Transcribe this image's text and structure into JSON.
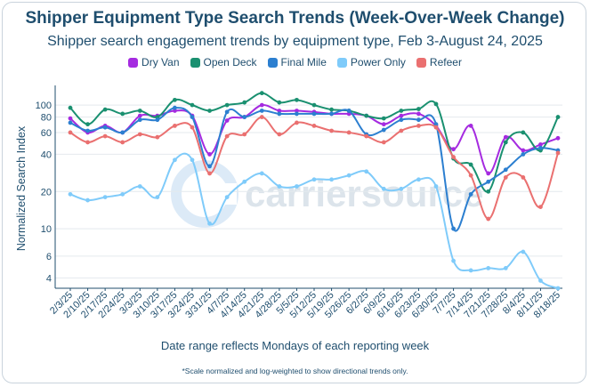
{
  "chart_data": {
    "type": "line",
    "title": "Shipper Equipment Type Search Trends (Week-Over-Week Change)",
    "subtitle": "Shipper search engagement trends by equipment type, Feb 3-August 24, 2025",
    "xlabel": "Date range reflects Mondays of each reporting week",
    "ylabel": "Normalized Search Index",
    "footnote": "*Scale normalized and log-weighted to show directional trends only.",
    "watermark": "carriersource",
    "y_scale": "log",
    "ylim": [
      3.3,
      135
    ],
    "y_ticks": [
      4,
      6,
      10,
      20,
      40,
      60,
      80,
      100
    ],
    "y_tick_labels": [
      "4",
      "6",
      "10",
      "20",
      "40",
      "60",
      "80",
      "100"
    ],
    "x_tick_labels": [
      "2/3/25",
      "2/10/25",
      "2/17/25",
      "2/24/25",
      "3/3/25",
      "3/10/25",
      "3/17/25",
      "3/24/25",
      "3/31/25",
      "4/7/25",
      "4/14/25",
      "4/21/25",
      "4/28/25",
      "5/5/25",
      "5/12/25",
      "5/19/25",
      "5/26/25",
      "6/2/25",
      "6/9/25",
      "6/16/25",
      "6/23/25",
      "6/30/25",
      "7/7/25",
      "7/14/25",
      "7/21/25",
      "7/28/25",
      "8/4/25",
      "8/11/25",
      "8/18/25"
    ],
    "legend_position": "top",
    "grid": true,
    "series": [
      {
        "name": "Dry Van",
        "color": "#a52be0",
        "values": [
          78,
          60,
          68,
          60,
          82,
          82,
          90,
          82,
          40,
          75,
          80,
          100,
          90,
          90,
          88,
          85,
          85,
          82,
          70,
          82,
          85,
          68,
          44,
          68,
          28,
          55,
          43,
          48,
          54
        ]
      },
      {
        "name": "Open Deck",
        "color": "#1a9070",
        "values": [
          95,
          70,
          92,
          85,
          90,
          80,
          110,
          100,
          90,
          100,
          105,
          125,
          105,
          110,
          100,
          92,
          90,
          82,
          78,
          90,
          93,
          102,
          37,
          33,
          20,
          50,
          60,
          43,
          80
        ]
      },
      {
        "name": "Final Mile",
        "color": "#2c7fd0",
        "values": [
          72,
          62,
          66,
          60,
          76,
          76,
          95,
          80,
          32,
          88,
          80,
          90,
          85,
          85,
          85,
          85,
          90,
          58,
          63,
          76,
          76,
          70,
          10,
          19,
          24,
          30,
          40,
          45,
          43
        ]
      },
      {
        "name": "Power Only",
        "color": "#7fcbfa",
        "values": [
          19,
          17,
          18,
          19,
          22,
          18,
          36,
          36,
          11,
          18,
          24,
          28,
          22,
          22,
          25,
          25,
          27,
          29,
          21,
          21,
          25,
          22,
          5.5,
          4.6,
          4.8,
          4.8,
          6.5,
          3.8,
          3.3
        ]
      },
      {
        "name": "Refeer",
        "color": "#ea7070",
        "values": [
          60,
          50,
          56,
          50,
          58,
          55,
          68,
          66,
          28,
          56,
          58,
          80,
          58,
          72,
          68,
          62,
          60,
          56,
          50,
          62,
          68,
          66,
          38,
          27,
          12,
          26,
          26,
          15,
          41
        ]
      }
    ]
  }
}
